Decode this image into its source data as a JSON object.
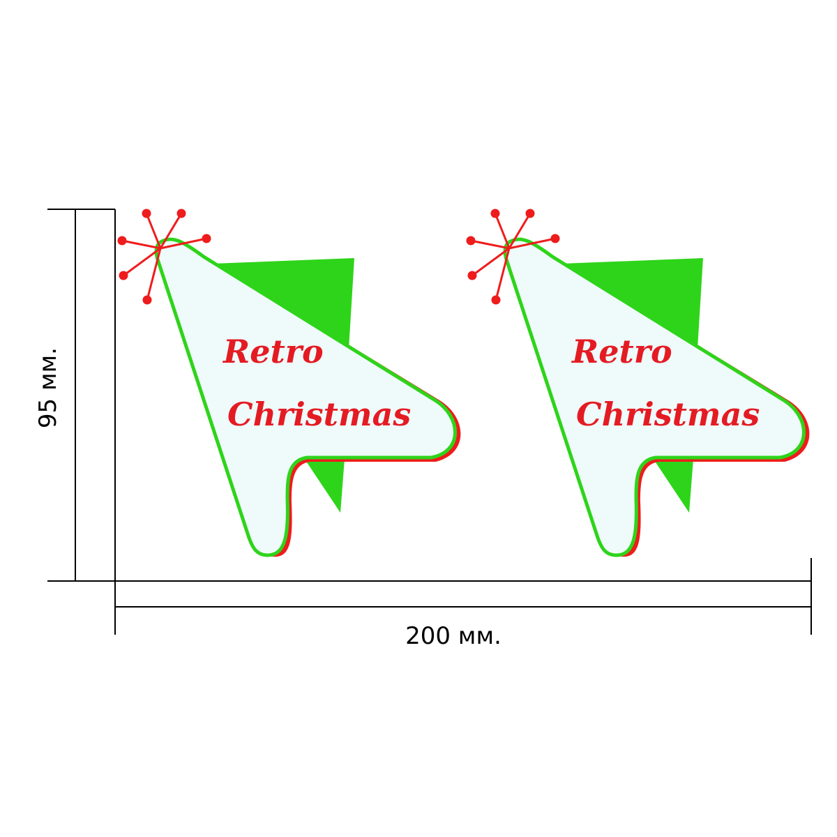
{
  "dimensions": {
    "height_label": "95 мм.",
    "width_label": "200 мм."
  },
  "stickers": [
    {
      "line1": "Retro",
      "line2": "Christmas"
    },
    {
      "line1": "Retro",
      "line2": "Christmas"
    }
  ],
  "colors": {
    "green": "#2ed41a",
    "red": "#ee1c1c",
    "fill": "#effafa",
    "text": "#e41b23",
    "line": "#000000"
  }
}
